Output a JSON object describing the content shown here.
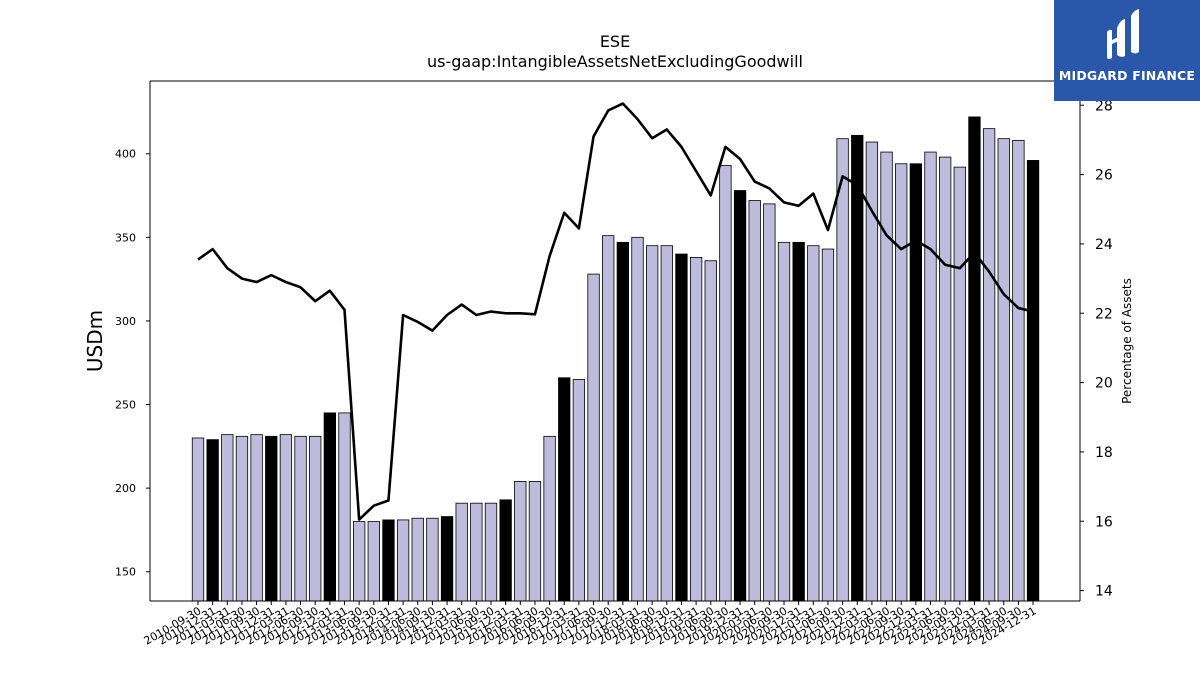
{
  "header": {
    "title": "ESE",
    "subtitle": "us-gaap:IntangibleAssetsNetExcludingGoodwill"
  },
  "logo": {
    "text": "MIDGARD FINANCE"
  },
  "colors": {
    "bar_light": "#bfbbdc",
    "bar_dark": "#000000",
    "line": "#000000",
    "logo_bg": "#2a57a9"
  },
  "chart_data": {
    "type": "bar",
    "title": "ESE",
    "subtitle": "us-gaap:IntangibleAssetsNetExcludingGoodwill",
    "ylabel": "USDm",
    "y2label": "Percentage of Assets",
    "ylim": [
      132.5,
      443.5
    ],
    "y2lim": [
      13.7,
      28.7
    ],
    "yticks": [
      150,
      200,
      250,
      300,
      350,
      400
    ],
    "y2ticks": [
      14,
      16,
      18,
      20,
      22,
      24,
      26,
      28
    ],
    "categories": [
      "2010-09-30",
      "2010-12-31",
      "2011-03-31",
      "2011-06-30",
      "2011-09-30",
      "2011-12-31",
      "2012-03-31",
      "2012-06-30",
      "2012-09-30",
      "2012-12-31",
      "2013-03-31",
      "2013-06-30",
      "2013-09-30",
      "2013-12-31",
      "2014-03-31",
      "2014-06-30",
      "2014-09-30",
      "2014-12-31",
      "2015-03-31",
      "2015-06-30",
      "2015-09-30",
      "2015-12-31",
      "2016-03-31",
      "2016-06-30",
      "2016-09-30",
      "2016-12-31",
      "2017-03-31",
      "2017-06-30",
      "2017-09-30",
      "2017-12-31",
      "2018-03-31",
      "2018-06-30",
      "2018-09-30",
      "2018-12-31",
      "2019-03-31",
      "2019-06-30",
      "2019-09-30",
      "2019-12-31",
      "2020-03-31",
      "2020-06-30",
      "2020-09-30",
      "2020-12-31",
      "2021-03-31",
      "2021-06-30",
      "2021-09-30",
      "2021-12-31",
      "2022-03-31",
      "2022-06-30",
      "2022-09-30",
      "2022-12-31",
      "2023-03-31",
      "2023-06-30",
      "2023-09-30",
      "2023-12-31",
      "2024-03-31",
      "2024-06-30",
      "2024-09-30",
      "2024-12-31"
    ],
    "series": [
      {
        "type": "bar",
        "values": [
          230,
          229,
          232,
          231,
          232,
          231,
          232,
          231,
          231,
          245,
          245,
          180,
          180,
          181,
          181,
          182,
          182,
          183,
          191,
          191,
          191,
          193,
          204,
          204,
          231,
          266,
          265,
          328,
          351,
          347,
          350,
          345,
          345,
          340,
          338,
          336,
          393,
          378,
          372,
          370,
          347,
          347,
          345,
          343,
          409,
          411,
          407,
          401,
          394,
          394,
          401,
          398,
          392,
          422,
          415,
          409,
          408,
          396
        ],
        "highlight_year_end": true
      },
      {
        "type": "line",
        "axis": "right",
        "values": [
          23.55,
          23.85,
          23.3,
          23.0,
          22.9,
          23.1,
          22.9,
          22.75,
          22.35,
          22.65,
          22.1,
          16.05,
          16.45,
          16.6,
          21.95,
          21.75,
          21.5,
          21.95,
          22.25,
          21.95,
          22.05,
          22.0,
          22.0,
          21.97,
          23.65,
          24.9,
          24.45,
          27.1,
          27.85,
          28.05,
          27.6,
          27.05,
          27.3,
          26.8,
          26.1,
          25.4,
          26.8,
          26.45,
          25.8,
          25.6,
          25.2,
          25.1,
          25.45,
          24.4,
          25.95,
          25.7,
          24.95,
          24.25,
          23.85,
          24.1,
          23.85,
          23.4,
          23.3,
          23.75,
          23.2,
          22.55,
          22.15,
          22.05
        ]
      }
    ],
    "grid": false
  }
}
